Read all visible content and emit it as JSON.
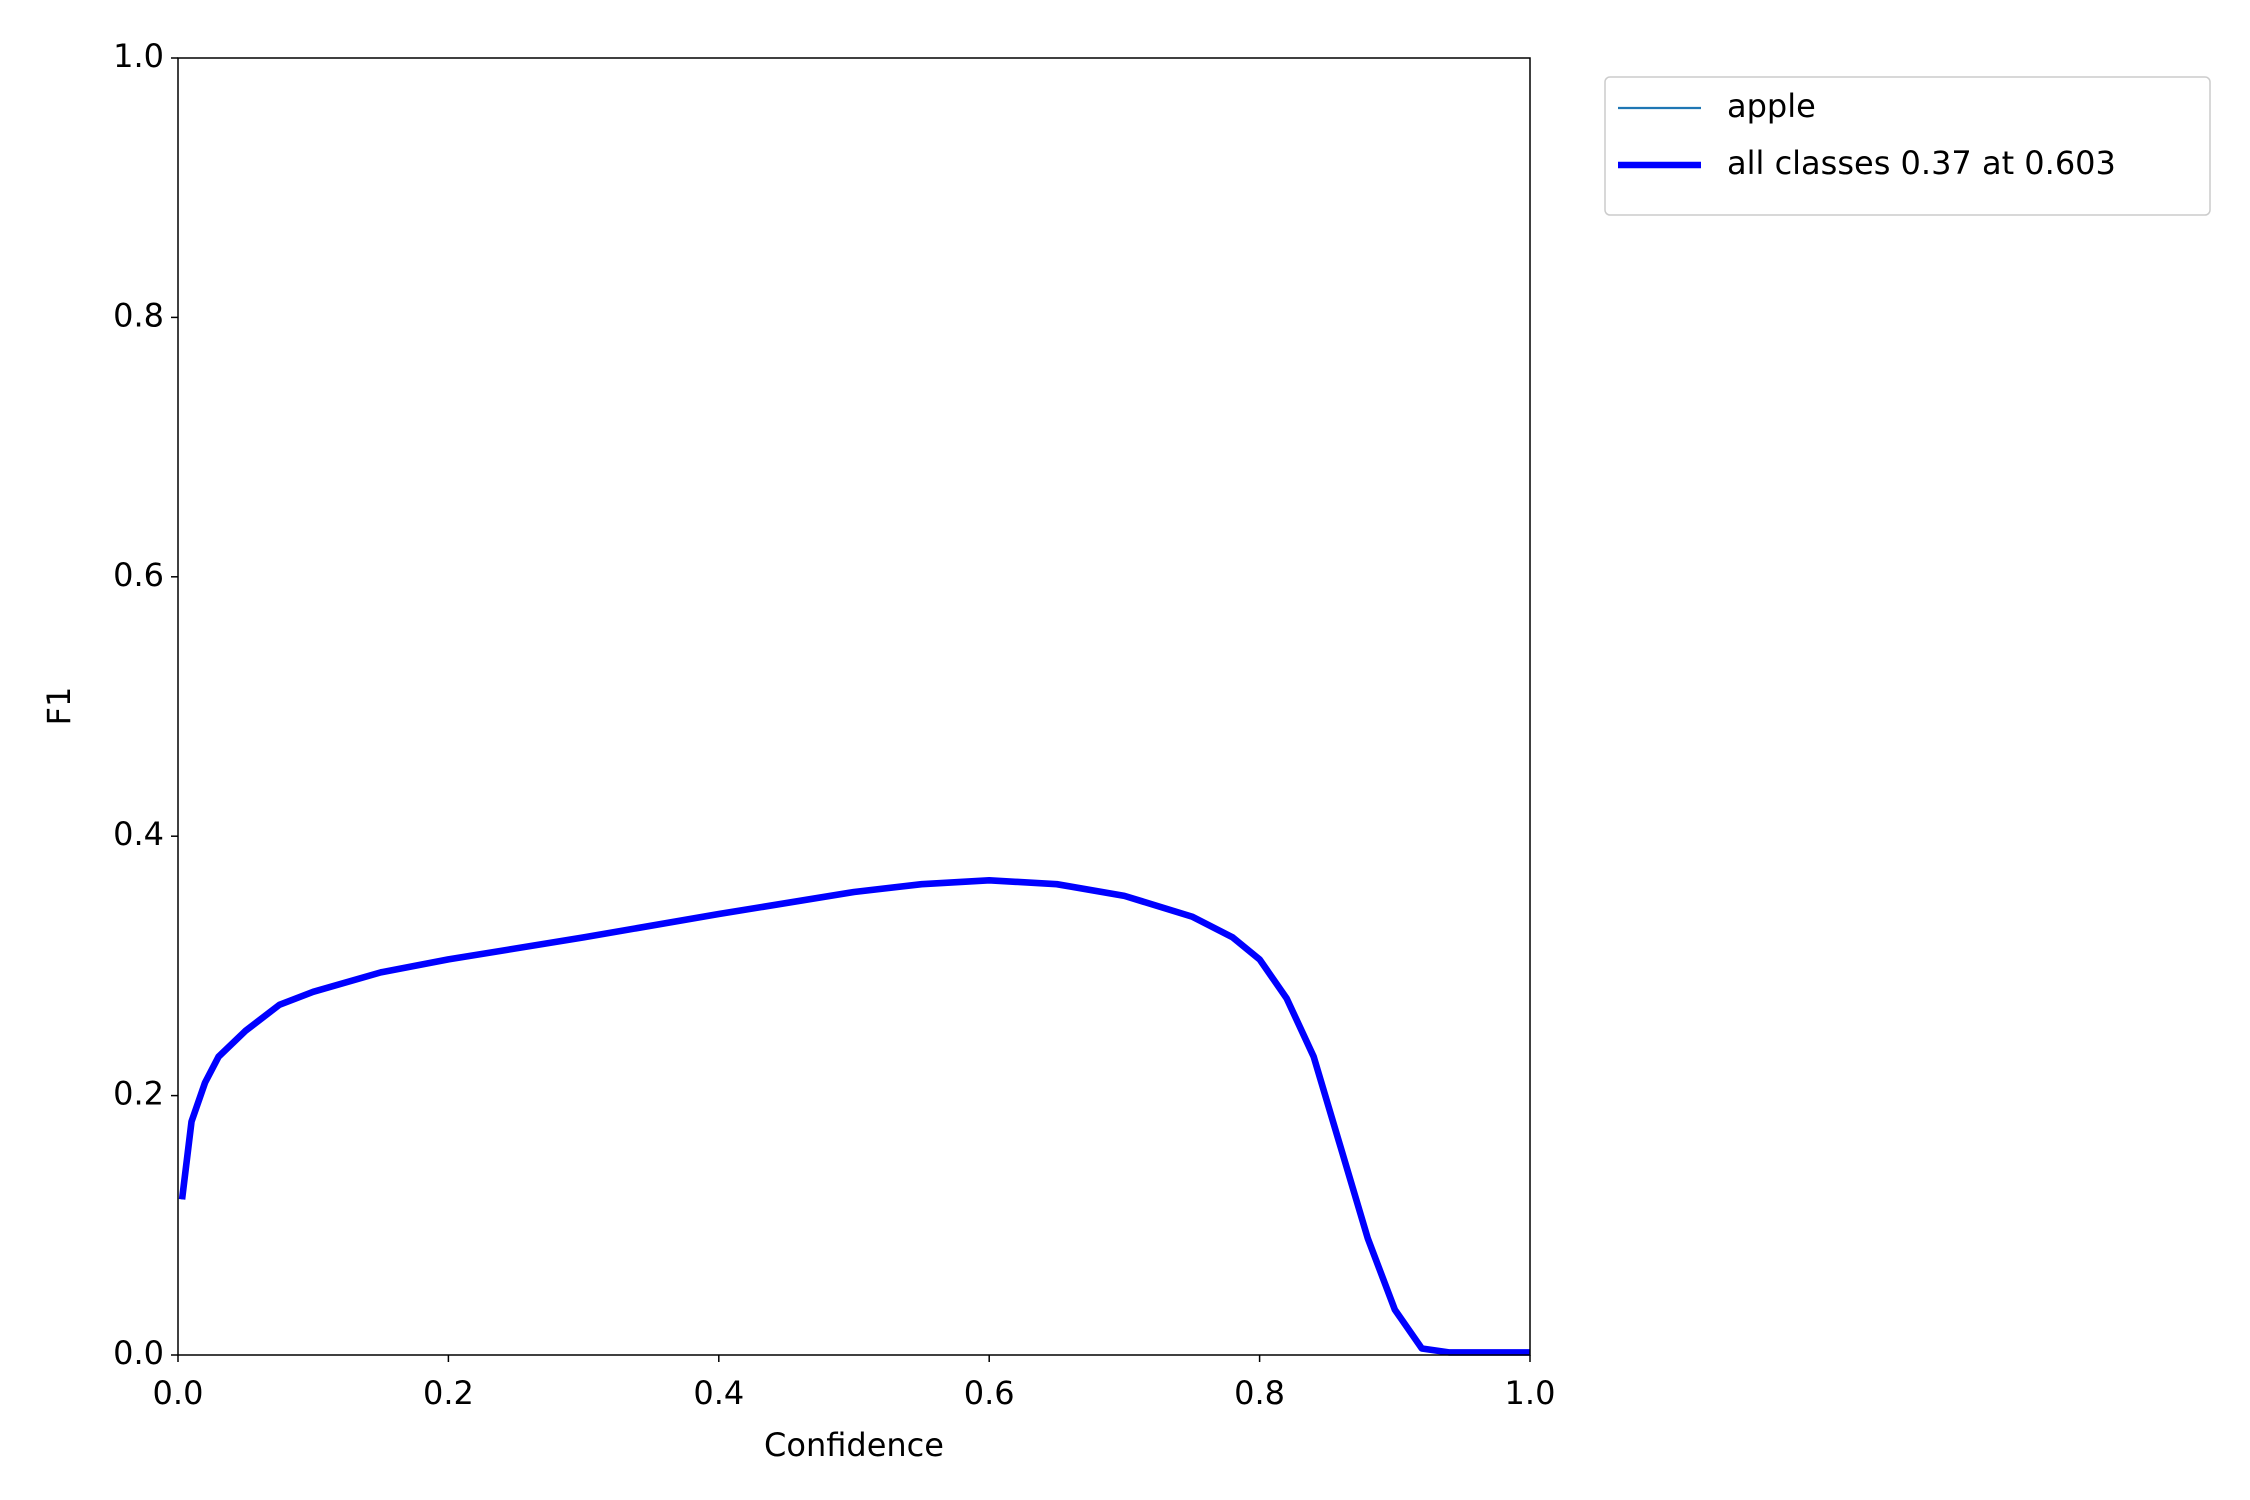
{
  "chart_data": {
    "type": "line",
    "xlabel": "Confidence",
    "ylabel": "F1",
    "x": [
      0.003,
      0.01,
      0.02,
      0.03,
      0.05,
      0.075,
      0.1,
      0.15,
      0.2,
      0.3,
      0.4,
      0.5,
      0.55,
      0.6,
      0.65,
      0.7,
      0.75,
      0.78,
      0.8,
      0.82,
      0.84,
      0.86,
      0.88,
      0.9,
      0.92,
      0.94,
      1.0
    ],
    "series": [
      {
        "name": "apple",
        "color": "#1f77b4",
        "width": 1,
        "values": [
          0.12,
          0.18,
          0.21,
          0.23,
          0.25,
          0.27,
          0.28,
          0.295,
          0.305,
          0.322,
          0.34,
          0.357,
          0.363,
          0.366,
          0.363,
          0.354,
          0.338,
          0.322,
          0.305,
          0.275,
          0.23,
          0.16,
          0.09,
          0.035,
          0.005,
          0.002,
          0.002
        ]
      },
      {
        "name": "all classes 0.37 at 0.603",
        "color": "#0000ff",
        "width": 3,
        "values": [
          0.12,
          0.18,
          0.21,
          0.23,
          0.25,
          0.27,
          0.28,
          0.295,
          0.305,
          0.322,
          0.34,
          0.357,
          0.363,
          0.366,
          0.363,
          0.354,
          0.338,
          0.322,
          0.305,
          0.275,
          0.23,
          0.16,
          0.09,
          0.035,
          0.005,
          0.002,
          0.002
        ]
      }
    ],
    "xlim": [
      0,
      1
    ],
    "ylim": [
      0,
      1
    ],
    "xticks": [
      {
        "value": 0,
        "label": "0.0"
      },
      0.2,
      0.4,
      0.6,
      0.8,
      {
        "value": 1,
        "label": "1.0"
      }
    ],
    "yticks": [
      {
        "value": 0,
        "label": "0.0"
      },
      0.2,
      0.4,
      0.6,
      0.8,
      {
        "value": 1,
        "label": "1.0"
      }
    ],
    "grid": false,
    "legend": "outside-upper-right"
  }
}
